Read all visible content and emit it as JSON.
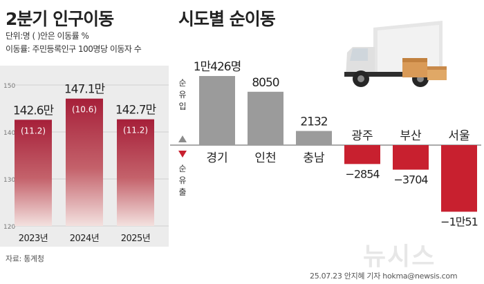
{
  "left": {
    "title": "2분기 인구이동",
    "unit_note": "단위:명 ( )안은 이동률 %",
    "rate_note": "이동률: 주민등록인구 100명당 이동자 수",
    "source": "자료: 통계청"
  },
  "right": {
    "title": "시도별 순이동",
    "inflow_label": "순유입",
    "outflow_label": "순유출"
  },
  "credit": "25.07.23 안지혜 기자 hokma@newsis.com",
  "watermark": "뉴시스",
  "colors": {
    "bar_left_top": "#a61f39",
    "bar_left_bottom": "#f3e1df",
    "bar_gray": "#9b9b9b",
    "bar_red": "#c8202f",
    "panel_bg": "#ececec"
  },
  "chart_data": [
    {
      "type": "bar",
      "categories": [
        "2023년",
        "2024년",
        "2025년"
      ],
      "values": [
        142.6,
        147.1,
        142.7
      ],
      "value_labels": [
        "142.6만",
        "147.1만",
        "142.7만"
      ],
      "rates": [
        11.2,
        10.6,
        11.2
      ],
      "rate_labels": [
        "(11.2)",
        "(10.6)",
        "(11.2)"
      ],
      "ylim": [
        120,
        150
      ],
      "yticks": [
        120,
        130,
        140,
        150
      ],
      "ytick_labels": [
        "120",
        "130",
        "140",
        "150"
      ]
    },
    {
      "type": "bar",
      "categories": [
        "경기",
        "인천",
        "충남",
        "광주",
        "부산",
        "서울"
      ],
      "values": [
        10426,
        8050,
        2132,
        -2854,
        -3704,
        -10051
      ],
      "value_labels": [
        "1만426명",
        "8050",
        "2132",
        "−2854",
        "−3704",
        "−1만51"
      ]
    }
  ]
}
